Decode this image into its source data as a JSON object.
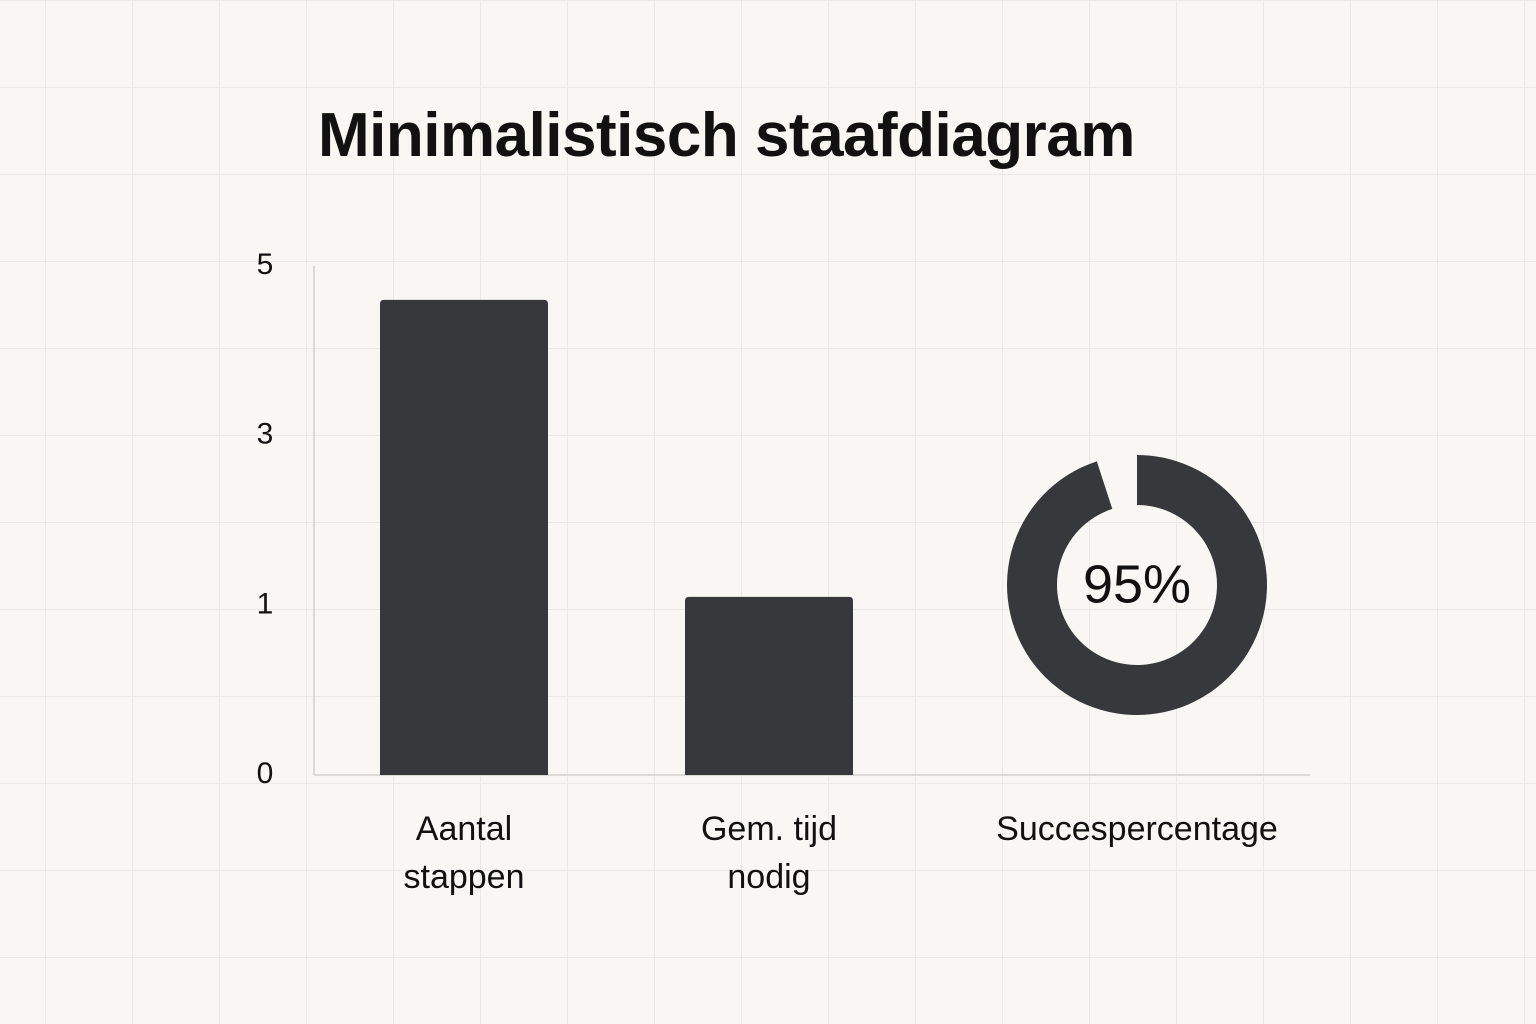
{
  "chart_data": [
    {
      "type": "bar",
      "title": "Minimalistisch staafdiagram",
      "categories": [
        "Aantal stappen",
        "Gem. tijd nodig"
      ],
      "values": [
        4.6,
        1.1
      ],
      "color": "#36383b",
      "ylim": [
        0,
        5
      ],
      "yticks": [
        0,
        1,
        3,
        5
      ]
    },
    {
      "type": "donut",
      "categories": [
        "Succespercentage"
      ],
      "values": [
        95
      ],
      "value_labels": [
        "95%"
      ],
      "color": "#36383b"
    }
  ]
}
